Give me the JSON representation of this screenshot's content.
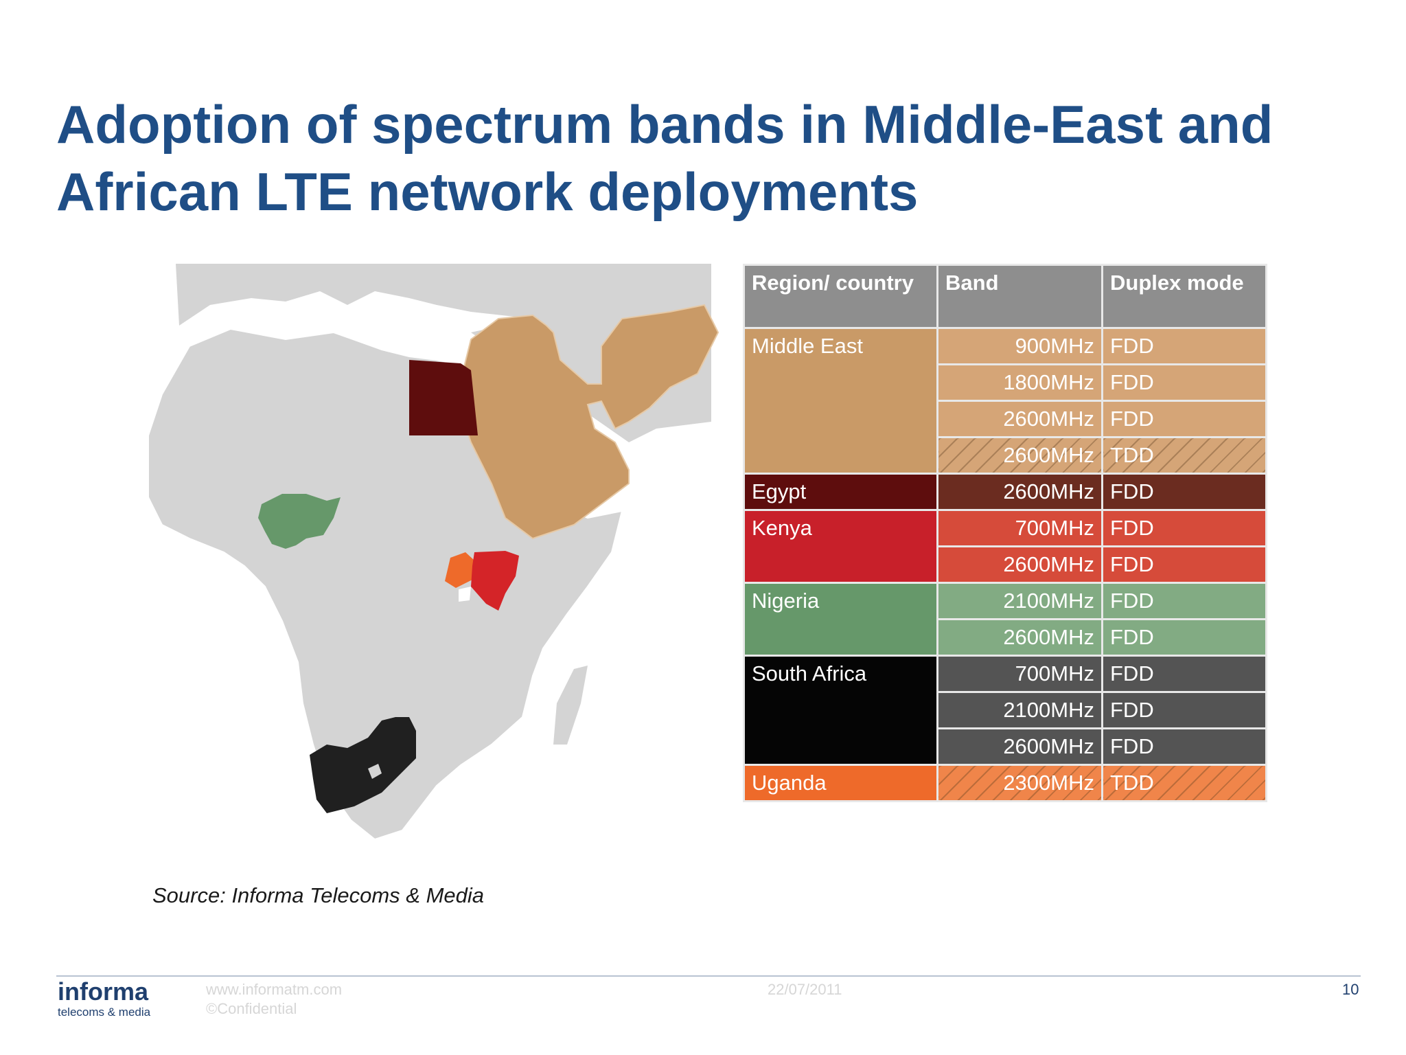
{
  "title": "Adoption of spectrum bands in Middle-East and African LTE network deployments",
  "source": "Source: Informa Telecoms & Media",
  "table": {
    "headers": {
      "region": "Region/ country",
      "band": "Band",
      "duplex": "Duplex mode"
    },
    "groups": [
      {
        "region": "Middle East",
        "region_color": "#c99a67",
        "row_color": "#d5a577",
        "rows": [
          {
            "band": "900MHz",
            "duplex": "FDD",
            "hatched": false
          },
          {
            "band": "1800MHz",
            "duplex": "FDD",
            "hatched": false
          },
          {
            "band": "2600MHz",
            "duplex": "FDD",
            "hatched": false
          },
          {
            "band": "2600MHz",
            "duplex": "TDD",
            "hatched": true
          }
        ]
      },
      {
        "region": "Egypt",
        "region_color": "#5e0d0d",
        "row_color": "#6b2c20",
        "rows": [
          {
            "band": "2600MHz",
            "duplex": "FDD",
            "hatched": false
          }
        ]
      },
      {
        "region": "Kenya",
        "region_color": "#c8202a",
        "row_color": "#d64b3a",
        "rows": [
          {
            "band": "700MHz",
            "duplex": "FDD",
            "hatched": false
          },
          {
            "band": "2600MHz",
            "duplex": "FDD",
            "hatched": false
          }
        ]
      },
      {
        "region": "Nigeria",
        "region_color": "#66986a",
        "row_color": "#82ab83",
        "rows": [
          {
            "band": "2100MHz",
            "duplex": "FDD",
            "hatched": false
          },
          {
            "band": "2600MHz",
            "duplex": "FDD",
            "hatched": false
          }
        ]
      },
      {
        "region": "South Africa",
        "region_color": "#050505",
        "row_color": "#545454",
        "rows": [
          {
            "band": "700MHz",
            "duplex": "FDD",
            "hatched": false
          },
          {
            "band": "2100MHz",
            "duplex": "FDD",
            "hatched": false
          },
          {
            "band": "2600MHz",
            "duplex": "FDD",
            "hatched": false
          }
        ]
      },
      {
        "region": "Uganda",
        "region_color": "#ee6a2a",
        "row_color": "#f0854a",
        "rows": [
          {
            "band": "2300MHz",
            "duplex": "TDD",
            "hatched": true
          }
        ]
      }
    ]
  },
  "map": {
    "land_color": "#d4d4d4",
    "border_color": "#ffffff",
    "middle_east_color": "#c99a67",
    "egypt_color": "#5e0d0d",
    "nigeria_color": "#66986a",
    "kenya_color": "#d42428",
    "uganda_color": "#ee6a2a",
    "south_africa_color": "#202020"
  },
  "footer": {
    "logo_main": "informa",
    "logo_sub": "telecoms & media",
    "url": "www.informatm.com",
    "confidential": "©Confidential",
    "date": "22/07/2011",
    "page": "10"
  }
}
